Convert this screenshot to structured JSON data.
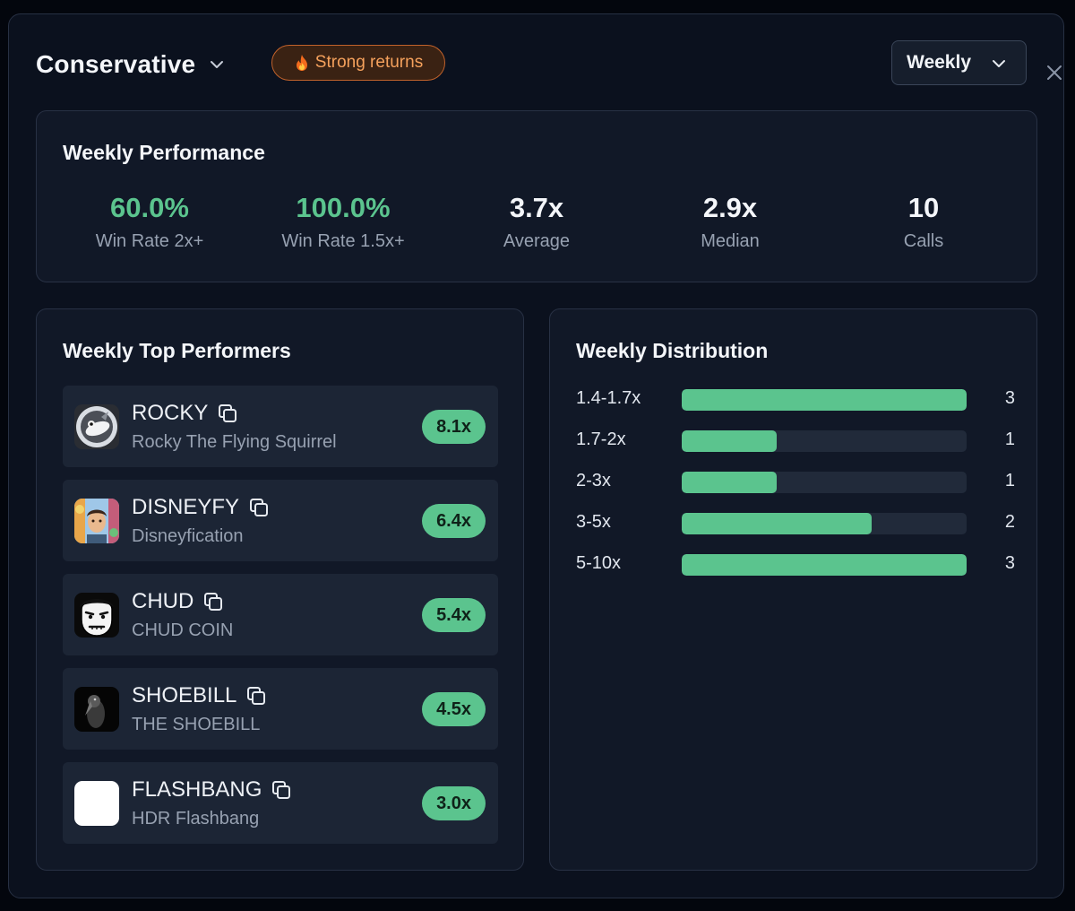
{
  "header": {
    "title": "Conservative",
    "badge": "Strong returns",
    "period": "Weekly"
  },
  "performance": {
    "title": "Weekly Performance",
    "stats": [
      {
        "value": "60.0%",
        "label": "Win Rate 2x+"
      },
      {
        "value": "100.0%",
        "label": "Win Rate 1.5x+"
      },
      {
        "value": "3.7x",
        "label": "Average"
      },
      {
        "value": "2.9x",
        "label": "Median"
      },
      {
        "value": "10",
        "label": "Calls"
      }
    ]
  },
  "top_performers": {
    "title": "Weekly Top Performers",
    "items": [
      {
        "symbol": "ROCKY",
        "name": "Rocky The Flying Squirrel",
        "multiple": "8.1x",
        "avatar": "squirrel-avatar"
      },
      {
        "symbol": "DISNEYFY",
        "name": "Disneyfication",
        "multiple": "6.4x",
        "avatar": "cartoon-avatar"
      },
      {
        "symbol": "CHUD",
        "name": "CHUD COIN",
        "multiple": "5.4x",
        "avatar": "chud-face-avatar"
      },
      {
        "symbol": "SHOEBILL",
        "name": "THE SHOEBILL",
        "multiple": "4.5x",
        "avatar": "shoebill-bird-avatar"
      },
      {
        "symbol": "FLASHBANG",
        "name": "HDR Flashbang",
        "multiple": "3.0x",
        "avatar": "white-square-avatar"
      }
    ]
  },
  "distribution": {
    "title": "Weekly Distribution",
    "max_count": 3,
    "buckets": [
      {
        "range": "1.4-1.7x",
        "count": 3
      },
      {
        "range": "1.7-2x",
        "count": 1
      },
      {
        "range": "2-3x",
        "count": 1
      },
      {
        "range": "3-5x",
        "count": 2
      },
      {
        "range": "5-10x",
        "count": 3
      }
    ]
  },
  "colors": {
    "accent_green": "#5bc48e",
    "badge_orange": "#f5a15c",
    "background": "#0b111e",
    "card": "#111827"
  }
}
